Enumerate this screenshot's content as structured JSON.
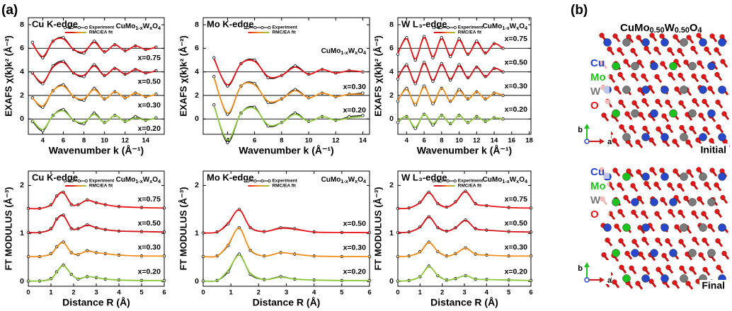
{
  "panel_label": "(a)",
  "chart_data": [
    {
      "type": "line",
      "title": "Cu K-edge",
      "compound": "CuMo1-xWxO4",
      "legend": [
        "Experiment",
        "RMC/EA fit"
      ],
      "xlabel": "Wavenumber k (Å⁻¹)",
      "ylabel": "EXAFS χ(k)k² (Å⁻²)",
      "xlim": [
        2.6,
        15.8
      ],
      "xticks": [
        4,
        6,
        8,
        10,
        12,
        14
      ],
      "ylim": [
        -1.3,
        8.6
      ],
      "yticks": [
        0,
        2,
        4,
        6,
        8
      ],
      "x": [
        3,
        4,
        5,
        6,
        7,
        8,
        9,
        10,
        11,
        12,
        13,
        14,
        15
      ],
      "groups": [
        {
          "label": "x=0.75",
          "baseline": 6,
          "color": "#e8161b",
          "experiment": [
            6.5,
            5.2,
            6.6,
            6.9,
            5.9,
            5.6,
            6.6,
            5.7,
            6.3,
            5.8,
            6.2,
            5.9,
            6.1
          ],
          "fit": [
            6.4,
            5.3,
            6.6,
            6.8,
            5.9,
            5.7,
            6.5,
            5.7,
            6.3,
            5.8,
            6.2,
            5.9,
            6.1
          ]
        },
        {
          "label": "x=0.50",
          "baseline": 4,
          "color": "#d3151c",
          "experiment": [
            3.9,
            3.0,
            4.5,
            4.9,
            3.9,
            3.6,
            4.6,
            3.7,
            4.3,
            3.8,
            4.2,
            3.9,
            4.1
          ],
          "fit": [
            3.9,
            3.1,
            4.4,
            4.8,
            3.9,
            3.7,
            4.5,
            3.7,
            4.3,
            3.8,
            4.2,
            3.9,
            4.1
          ]
        },
        {
          "label": "x=0.30",
          "baseline": 2,
          "color": "#f0901e",
          "experiment": [
            1.8,
            1.0,
            2.4,
            2.9,
            1.9,
            1.6,
            2.6,
            1.7,
            2.3,
            1.8,
            2.2,
            1.9,
            2.1
          ],
          "fit": [
            1.8,
            1.1,
            2.4,
            2.8,
            1.9,
            1.7,
            2.5,
            1.7,
            2.3,
            1.8,
            2.2,
            1.9,
            2.1
          ]
        },
        {
          "label": "x=0.20",
          "baseline": 0,
          "color": "#8dc63f",
          "experiment": [
            -0.2,
            -1.0,
            0.3,
            0.8,
            -0.1,
            -0.4,
            0.5,
            -0.3,
            0.3,
            -0.2,
            0.2,
            -0.1,
            0.1
          ],
          "fit": [
            -0.1,
            -0.9,
            0.3,
            0.7,
            -0.1,
            -0.3,
            0.4,
            -0.3,
            0.3,
            -0.2,
            0.1,
            -0.1,
            0.1
          ]
        }
      ]
    },
    {
      "type": "line",
      "title": "Mo K-edge",
      "compound": "CuMo1-xWxO4",
      "legend": [
        "Experiment",
        "RMC/EA fit"
      ],
      "xlabel": "Wavenumber k (Å⁻¹)",
      "ylabel": "EXAFS χ(k)k² (Å⁻²)",
      "xlim": [
        2.2,
        14.5
      ],
      "xticks": [
        4,
        6,
        8,
        10,
        12,
        14
      ],
      "ylim": [
        -1.3,
        8.6
      ],
      "yticks": [
        0,
        2,
        4,
        6,
        8
      ],
      "x": [
        3,
        4,
        5,
        6,
        7,
        8,
        9,
        10,
        11,
        12,
        13,
        14
      ],
      "groups": [
        {
          "baseline": 4,
          "color": "#e8161b",
          "experiment": [
            5.2,
            2.8,
            4.7,
            5.0,
            3.5,
            3.7,
            4.5,
            3.8,
            4.2,
            3.9,
            4.1,
            4.0
          ],
          "fit": [
            5.1,
            2.9,
            4.7,
            4.9,
            3.6,
            3.7,
            4.4,
            3.8,
            4.2,
            3.9,
            4.1,
            4.0
          ]
        },
        {
          "label": "x=0.30",
          "baseline": 2,
          "color": "#f0901e",
          "experiment": [
            3.6,
            0.4,
            2.8,
            3.0,
            1.4,
            1.7,
            2.5,
            1.8,
            2.2,
            1.9,
            2.1,
            2.2
          ],
          "fit": [
            3.5,
            0.5,
            2.8,
            2.9,
            1.5,
            1.7,
            2.4,
            1.8,
            2.2,
            1.9,
            2.1,
            2.1
          ]
        },
        {
          "label": "x=0.20",
          "baseline": 0,
          "color": "#8dc63f",
          "experiment": [
            1.2,
            -2.0,
            0.5,
            1.0,
            -0.6,
            -0.3,
            0.5,
            -0.2,
            0.2,
            -0.1,
            0.2,
            0.3
          ],
          "fit": [
            1.1,
            -1.8,
            0.5,
            0.9,
            -0.5,
            -0.3,
            0.4,
            -0.2,
            0.2,
            -0.1,
            0.1,
            0.2
          ]
        }
      ]
    },
    {
      "type": "line",
      "title": "W L₃-edge",
      "compound": "CuMo1-xWxO4",
      "legend": [
        "Experiment",
        "RMC/EA fit"
      ],
      "xlabel": "Wavenumber k (Å⁻¹)",
      "ylabel": "EXAFS χ(k)k² (Å⁻²)",
      "xlim": [
        3,
        18.2
      ],
      "xticks": [
        4,
        6,
        8,
        10,
        12,
        14,
        16,
        18
      ],
      "ylim": [
        -1.3,
        8.6
      ],
      "yticks": [
        0,
        2,
        4,
        6,
        8
      ],
      "x": [
        3,
        4,
        5,
        6,
        7,
        8,
        9,
        10,
        11,
        12,
        13,
        14,
        15
      ],
      "groups": [
        {
          "label": "x=0.75",
          "baseline": 6,
          "color": "#e8161b",
          "experiment": [
            5.5,
            6.9,
            5.0,
            7.0,
            5.2,
            6.9,
            5.3,
            6.8,
            5.5,
            6.6,
            5.6,
            6.4,
            6.0
          ],
          "fit": [
            5.6,
            6.8,
            5.1,
            6.9,
            5.3,
            6.8,
            5.4,
            6.7,
            5.5,
            6.5,
            5.6,
            6.4,
            6.0
          ]
        },
        {
          "label": "x=0.50",
          "baseline": 4,
          "color": "#d3151c",
          "experiment": [
            3.4,
            4.6,
            3.0,
            4.8,
            3.2,
            4.7,
            3.3,
            4.6,
            3.5,
            4.4,
            3.6,
            4.3,
            4.0
          ],
          "fit": [
            3.5,
            4.5,
            3.1,
            4.7,
            3.3,
            4.6,
            3.4,
            4.5,
            3.5,
            4.4,
            3.6,
            4.3,
            4.0
          ]
        },
        {
          "label": "x=0.30",
          "baseline": 2,
          "color": "#f0901e",
          "experiment": [
            1.5,
            2.6,
            1.2,
            2.8,
            1.3,
            2.6,
            1.5,
            2.5,
            1.7,
            2.3,
            1.7,
            2.2,
            2.0
          ],
          "fit": [
            1.6,
            2.5,
            1.3,
            2.7,
            1.4,
            2.6,
            1.5,
            2.4,
            1.7,
            2.3,
            1.7,
            2.2,
            2.0
          ]
        },
        {
          "label": "x=0.20",
          "baseline": 0,
          "color": "#8dc63f",
          "experiment": [
            -0.3,
            0.2,
            -0.8,
            0.4,
            -0.5,
            0.3,
            -0.4,
            0.3,
            -0.3,
            0.2,
            -0.2,
            0.1,
            0.0
          ],
          "fit": [
            -0.2,
            0.2,
            -0.7,
            0.4,
            -0.4,
            0.3,
            -0.4,
            0.3,
            -0.3,
            0.2,
            -0.2,
            0.1,
            0.0
          ]
        }
      ]
    },
    {
      "type": "line",
      "title": "Cu K-edge",
      "compound": "CuMo1-xWxO4",
      "legend": [
        "Experiment",
        "RMC/EA fit"
      ],
      "xlabel": "Distance R (Å)",
      "ylabel": "FT MODULUS (Å⁻³)",
      "xlim": [
        0,
        6
      ],
      "xticks": [
        0,
        1,
        2,
        3,
        4,
        5,
        6
      ],
      "ylim": [
        -0.1,
        2.3
      ],
      "yticks": [
        0,
        1,
        2
      ],
      "x": [
        0,
        0.5,
        1,
        1.25,
        1.55,
        1.9,
        2.2,
        2.6,
        3,
        3.4,
        4,
        5,
        6
      ],
      "groups": [
        {
          "label": "x=0.75",
          "color": "#e8161b",
          "experiment": [
            1.52,
            1.52,
            1.6,
            1.78,
            1.86,
            1.6,
            1.6,
            1.7,
            1.64,
            1.6,
            1.56,
            1.54,
            1.53
          ],
          "fit": [
            1.52,
            1.52,
            1.59,
            1.77,
            1.85,
            1.61,
            1.6,
            1.69,
            1.64,
            1.6,
            1.56,
            1.54,
            1.53
          ]
        },
        {
          "label": "x=0.50",
          "color": "#d3151c",
          "experiment": [
            1.02,
            1.02,
            1.1,
            1.3,
            1.38,
            1.1,
            1.1,
            1.18,
            1.12,
            1.08,
            1.05,
            1.04,
            1.03
          ],
          "fit": [
            1.02,
            1.02,
            1.09,
            1.29,
            1.37,
            1.11,
            1.1,
            1.17,
            1.12,
            1.08,
            1.05,
            1.04,
            1.03
          ]
        },
        {
          "label": "x=0.30",
          "color": "#f0901e",
          "experiment": [
            0.52,
            0.52,
            0.58,
            0.72,
            0.82,
            0.6,
            0.56,
            0.64,
            0.6,
            0.58,
            0.55,
            0.53,
            0.53
          ],
          "fit": [
            0.52,
            0.52,
            0.57,
            0.71,
            0.81,
            0.6,
            0.57,
            0.63,
            0.6,
            0.58,
            0.55,
            0.53,
            0.53
          ]
        },
        {
          "label": "x=0.20",
          "color": "#8dc63f",
          "experiment": [
            0.01,
            0.01,
            0.06,
            0.2,
            0.34,
            0.15,
            0.05,
            0.1,
            0.08,
            0.05,
            0.03,
            0.02,
            0.02
          ],
          "fit": [
            0.01,
            0.01,
            0.05,
            0.19,
            0.33,
            0.15,
            0.06,
            0.1,
            0.08,
            0.05,
            0.03,
            0.02,
            0.02
          ]
        }
      ]
    },
    {
      "type": "line",
      "title": "Mo K-edge",
      "compound": "CuMo1-xWxO4",
      "legend": [
        "Experiment",
        "RMC/EA fit"
      ],
      "xlabel": "Distance R (Å)",
      "ylabel": "FT MODULUS (Å⁻³)",
      "xlim": [
        0,
        6
      ],
      "xticks": [
        0,
        1,
        2,
        3,
        4,
        5,
        6
      ],
      "ylim": [
        -0.1,
        2.3
      ],
      "yticks": [
        0,
        1,
        2
      ],
      "x": [
        0,
        0.5,
        0.9,
        1.3,
        1.7,
        2.2,
        2.8,
        3.3,
        4,
        5,
        6
      ],
      "groups": [
        {
          "label": "x=0.50",
          "color": "#e8161b",
          "experiment": [
            1.01,
            1.03,
            1.2,
            1.5,
            1.12,
            1.04,
            1.12,
            1.1,
            1.03,
            1.02,
            1.02
          ],
          "fit": [
            1.01,
            1.03,
            1.22,
            1.49,
            1.13,
            1.04,
            1.11,
            1.09,
            1.03,
            1.02,
            1.02
          ]
        },
        {
          "label": "x=0.30",
          "color": "#f0901e",
          "experiment": [
            0.52,
            0.53,
            0.75,
            1.12,
            0.65,
            0.53,
            0.6,
            0.57,
            0.53,
            0.52,
            0.52
          ],
          "fit": [
            0.52,
            0.53,
            0.77,
            1.11,
            0.66,
            0.53,
            0.6,
            0.57,
            0.53,
            0.52,
            0.52
          ]
        },
        {
          "label": "x=0.20",
          "color": "#8dc63f",
          "experiment": [
            0.01,
            0.02,
            0.2,
            0.57,
            0.15,
            0.04,
            0.1,
            0.05,
            0.03,
            0.02,
            0.02
          ],
          "fit": [
            0.01,
            0.02,
            0.23,
            0.55,
            0.17,
            0.04,
            0.09,
            0.05,
            0.03,
            0.02,
            0.02
          ]
        }
      ]
    },
    {
      "type": "line",
      "title": "W L₃-edge",
      "compound": "CuMo1-xWxO4",
      "legend": [
        "Experiment",
        "RMC/EA fit"
      ],
      "xlabel": "Distance R (Å)",
      "ylabel": "FT MODULUS (Å⁻³)",
      "xlim": [
        0,
        6
      ],
      "xticks": [
        0,
        1,
        2,
        3,
        4,
        5,
        6
      ],
      "ylim": [
        -0.1,
        2.3
      ],
      "yticks": [
        0,
        1,
        2
      ],
      "x": [
        0,
        0.5,
        1,
        1.4,
        1.8,
        2.2,
        2.6,
        3.05,
        3.5,
        4,
        5,
        6
      ],
      "groups": [
        {
          "label": "x=0.75",
          "color": "#e8161b",
          "experiment": [
            1.52,
            1.53,
            1.65,
            1.86,
            1.62,
            1.55,
            1.66,
            1.88,
            1.62,
            1.58,
            1.54,
            1.53
          ],
          "fit": [
            1.52,
            1.53,
            1.64,
            1.85,
            1.63,
            1.55,
            1.65,
            1.87,
            1.62,
            1.58,
            1.54,
            1.53
          ]
        },
        {
          "label": "x=0.50",
          "color": "#d3151c",
          "experiment": [
            1.02,
            1.03,
            1.14,
            1.35,
            1.12,
            1.05,
            1.12,
            1.28,
            1.1,
            1.07,
            1.04,
            1.03
          ],
          "fit": [
            1.02,
            1.03,
            1.13,
            1.34,
            1.13,
            1.05,
            1.12,
            1.27,
            1.1,
            1.07,
            1.04,
            1.03
          ]
        },
        {
          "label": "x=0.30",
          "color": "#f0901e",
          "experiment": [
            0.52,
            0.53,
            0.62,
            0.82,
            0.62,
            0.53,
            0.58,
            0.7,
            0.57,
            0.55,
            0.53,
            0.53
          ],
          "fit": [
            0.52,
            0.53,
            0.61,
            0.81,
            0.63,
            0.53,
            0.58,
            0.69,
            0.57,
            0.55,
            0.53,
            0.53
          ]
        },
        {
          "label": "x=0.20",
          "color": "#8dc63f",
          "experiment": [
            0.01,
            0.02,
            0.1,
            0.32,
            0.12,
            0.03,
            0.06,
            0.12,
            0.05,
            0.04,
            0.03,
            0.02
          ],
          "fit": [
            0.01,
            0.02,
            0.1,
            0.31,
            0.13,
            0.03,
            0.06,
            0.12,
            0.05,
            0.04,
            0.03,
            0.02
          ]
        }
      ]
    }
  ],
  "structure": {
    "label": "(b)",
    "formula": "CuMo0.50W0.50O4",
    "elements": [
      {
        "name": "Cu",
        "color": "#2748c8"
      },
      {
        "name": "Mo",
        "color": "#1ec21e"
      },
      {
        "name": "W",
        "color": "#7a7a7a"
      },
      {
        "name": "O",
        "color": "#e01818"
      }
    ],
    "axes": [
      "b",
      "a"
    ],
    "states": [
      "Initial",
      "Final"
    ]
  }
}
